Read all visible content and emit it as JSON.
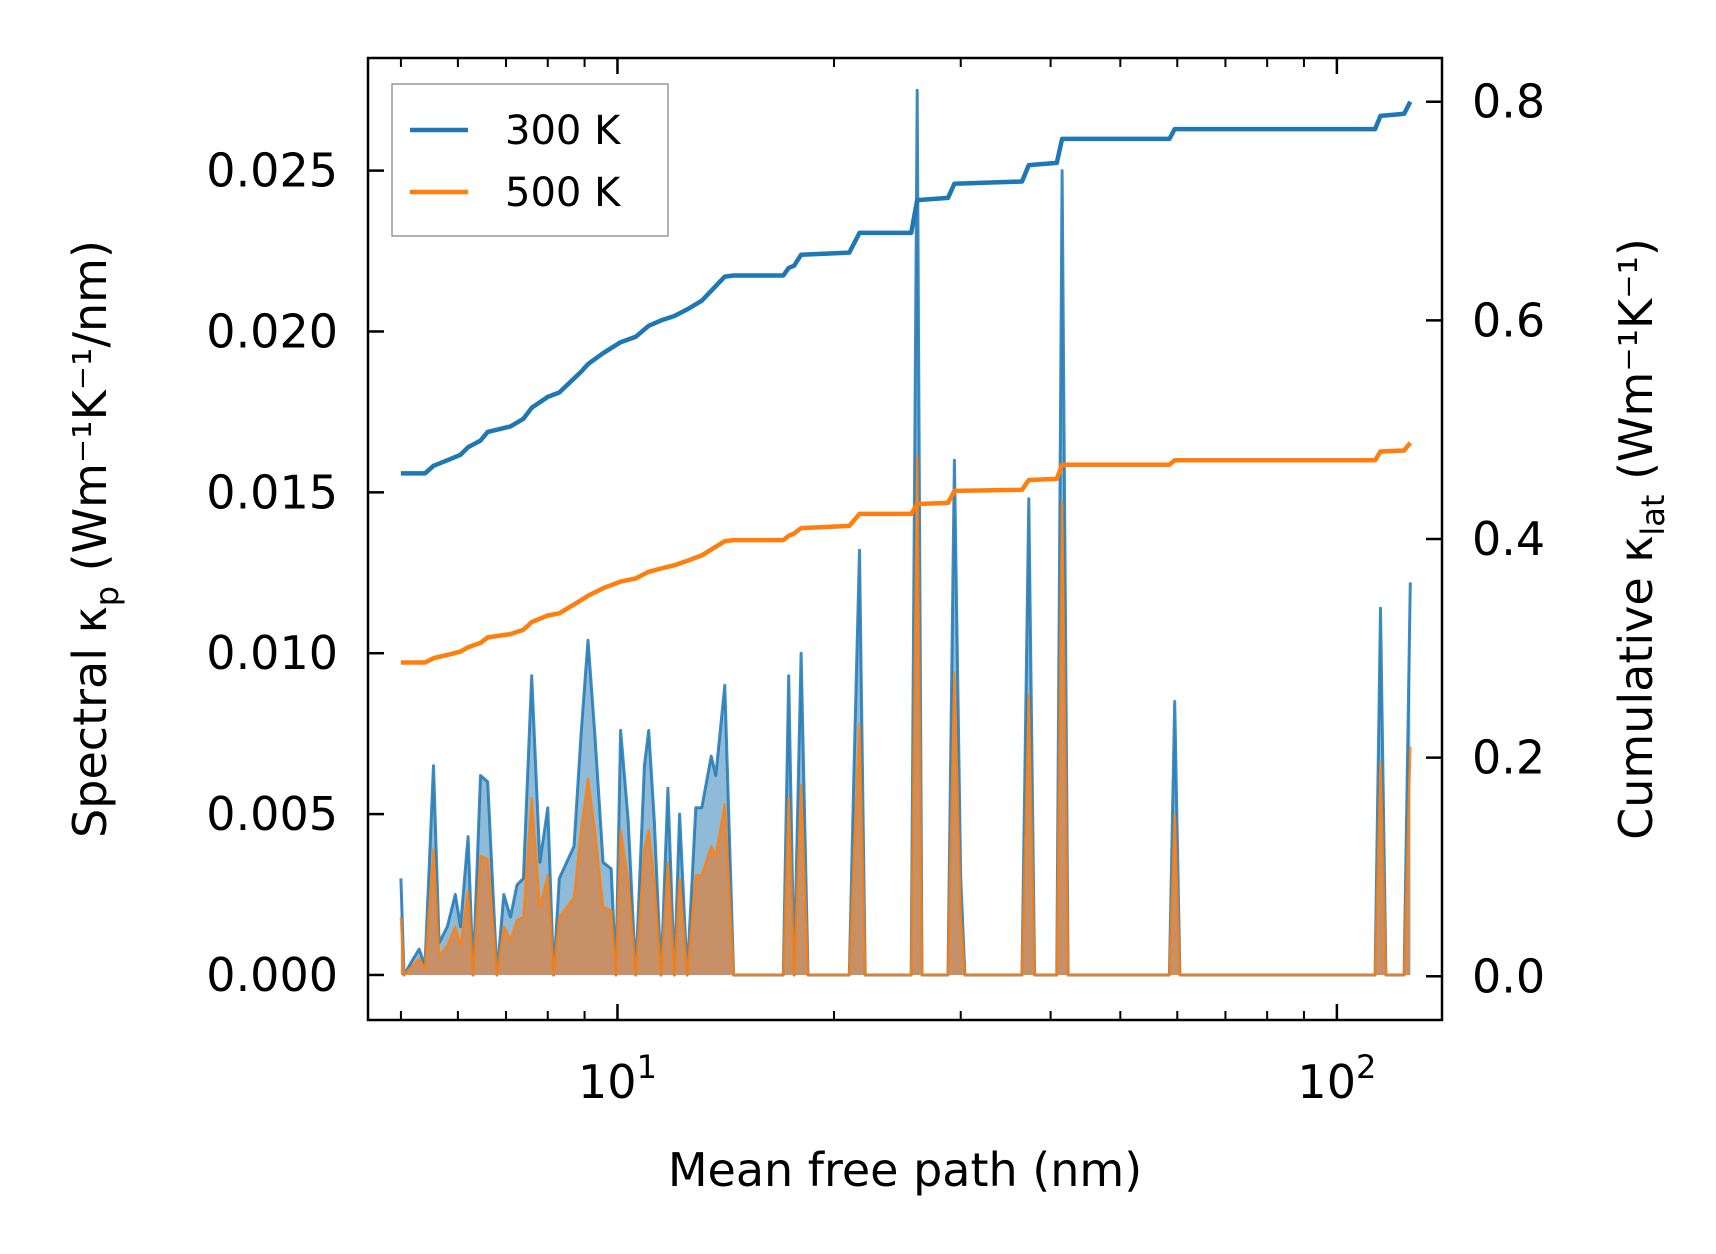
{
  "chart_data": {
    "type": "line",
    "xlabel": "Mean free path (nm)",
    "ylabel_left": {
      "pre": "Spectral κ",
      "sub": "p",
      "units": "(Wm⁻¹K⁻¹/nm)"
    },
    "ylabel_right": {
      "pre": "Cumulative κ",
      "sub": "lat",
      "units": "(Wm⁻¹K⁻¹)"
    },
    "xscale": "log",
    "xlim": [
      4.5,
      140
    ],
    "ylim_left": [
      -0.0014,
      0.0285
    ],
    "ylim_right": [
      -0.04,
      0.84
    ],
    "x_ticks": [
      {
        "value": 10,
        "base": "10",
        "exp": "1"
      },
      {
        "value": 100,
        "base": "10",
        "exp": "2"
      }
    ],
    "y_ticks_left": [
      "0.000",
      "0.005",
      "0.010",
      "0.015",
      "0.020",
      "0.025"
    ],
    "y_tick_values_left": [
      0,
      0.005,
      0.01,
      0.015,
      0.02,
      0.025
    ],
    "y_ticks_right": [
      "0.0",
      "0.2",
      "0.4",
      "0.6",
      "0.8"
    ],
    "y_tick_values_right": [
      0,
      0.2,
      0.4,
      0.6,
      0.8
    ],
    "legend": {
      "location": "top-left",
      "entries": [
        "300 K",
        "500 K"
      ]
    },
    "series": [
      {
        "name": "300 K",
        "color": "#1f77b4",
        "fill_color": "#1f77b4",
        "spectral": [
          [
            5.0,
            0.003
          ],
          [
            5.05,
            0.0
          ],
          [
            5.2,
            0.0005
          ],
          [
            5.3,
            0.0008
          ],
          [
            5.4,
            0.0003
          ],
          [
            5.55,
            0.0065
          ],
          [
            5.65,
            0.001
          ],
          [
            5.8,
            0.0015
          ],
          [
            5.95,
            0.0025
          ],
          [
            6.05,
            0.0015
          ],
          [
            6.2,
            0.0043
          ],
          [
            6.3,
            0.0
          ],
          [
            6.45,
            0.0062
          ],
          [
            6.6,
            0.006
          ],
          [
            6.8,
            0.0
          ],
          [
            6.95,
            0.0025
          ],
          [
            7.1,
            0.0018
          ],
          [
            7.25,
            0.0028
          ],
          [
            7.4,
            0.003
          ],
          [
            7.6,
            0.0093
          ],
          [
            7.8,
            0.0035
          ],
          [
            8.0,
            0.0052
          ],
          [
            8.15,
            0.0
          ],
          [
            8.3,
            0.003
          ],
          [
            8.5,
            0.0035
          ],
          [
            8.7,
            0.004
          ],
          [
            8.9,
            0.0075
          ],
          [
            9.1,
            0.0104
          ],
          [
            9.3,
            0.0075
          ],
          [
            9.55,
            0.0035
          ],
          [
            9.8,
            0.0033
          ],
          [
            9.95,
            0.0
          ],
          [
            10.1,
            0.0076
          ],
          [
            10.35,
            0.0048
          ],
          [
            10.6,
            0.0
          ],
          [
            10.9,
            0.0065
          ],
          [
            11.05,
            0.0076
          ],
          [
            11.25,
            0.0048
          ],
          [
            11.5,
            0.0
          ],
          [
            11.75,
            0.0058
          ],
          [
            12.0,
            0.0
          ],
          [
            12.2,
            0.005
          ],
          [
            12.5,
            0.0
          ],
          [
            12.85,
            0.0052
          ],
          [
            13.1,
            0.0052
          ],
          [
            13.5,
            0.0068
          ],
          [
            13.7,
            0.0062
          ],
          [
            14.1,
            0.009
          ],
          [
            14.5,
            0.0
          ],
          [
            17.0,
            0.0
          ],
          [
            17.3,
            0.0093
          ],
          [
            17.6,
            0.0
          ],
          [
            18.0,
            0.01
          ],
          [
            18.4,
            0.0
          ],
          [
            21.0,
            0.0
          ],
          [
            21.3,
            0.006
          ],
          [
            21.7,
            0.0132
          ],
          [
            22.1,
            0.0
          ],
          [
            25.6,
            0.0
          ],
          [
            26.1,
            0.0275
          ],
          [
            26.5,
            0.0
          ],
          [
            28.8,
            0.0
          ],
          [
            29.4,
            0.016
          ],
          [
            30.0,
            0.003
          ],
          [
            30.4,
            0.0
          ],
          [
            36.5,
            0.0
          ],
          [
            37.3,
            0.0148
          ],
          [
            38.0,
            0.0
          ],
          [
            40.8,
            0.0
          ],
          [
            41.5,
            0.025
          ],
          [
            42.3,
            0.0
          ],
          [
            58.5,
            0.0
          ],
          [
            59.5,
            0.0085
          ],
          [
            60.5,
            0.0
          ],
          [
            113,
            0.0
          ],
          [
            115,
            0.0114
          ],
          [
            117,
            0.0
          ],
          [
            124,
            0.0
          ],
          [
            126.5,
            0.0122
          ]
        ],
        "cumulative": [
          [
            5.0,
            0.46
          ],
          [
            5.4,
            0.46
          ],
          [
            5.55,
            0.467
          ],
          [
            5.8,
            0.472
          ],
          [
            6.05,
            0.477
          ],
          [
            6.2,
            0.484
          ],
          [
            6.45,
            0.49
          ],
          [
            6.6,
            0.498
          ],
          [
            7.1,
            0.503
          ],
          [
            7.4,
            0.51
          ],
          [
            7.6,
            0.52
          ],
          [
            8.0,
            0.53
          ],
          [
            8.3,
            0.534
          ],
          [
            8.9,
            0.553
          ],
          [
            9.1,
            0.56
          ],
          [
            9.55,
            0.57
          ],
          [
            10.1,
            0.58
          ],
          [
            10.6,
            0.585
          ],
          [
            11.05,
            0.595
          ],
          [
            11.5,
            0.6
          ],
          [
            12.0,
            0.604
          ],
          [
            12.5,
            0.61
          ],
          [
            13.1,
            0.618
          ],
          [
            14.1,
            0.64
          ],
          [
            14.5,
            0.641
          ],
          [
            17.0,
            0.641
          ],
          [
            17.3,
            0.648
          ],
          [
            17.6,
            0.65
          ],
          [
            18.0,
            0.66
          ],
          [
            21.0,
            0.662
          ],
          [
            21.7,
            0.68
          ],
          [
            25.6,
            0.68
          ],
          [
            26.1,
            0.71
          ],
          [
            28.8,
            0.712
          ],
          [
            29.4,
            0.725
          ],
          [
            36.5,
            0.727
          ],
          [
            37.3,
            0.742
          ],
          [
            40.8,
            0.744
          ],
          [
            41.5,
            0.766
          ],
          [
            58.5,
            0.766
          ],
          [
            59.5,
            0.775
          ],
          [
            113,
            0.775
          ],
          [
            115,
            0.787
          ],
          [
            124,
            0.789
          ],
          [
            126.5,
            0.8
          ]
        ]
      },
      {
        "name": "500 K",
        "color": "#ff7f0e",
        "fill_color": "#d08a55",
        "spectral": [
          [
            5.0,
            0.0018
          ],
          [
            5.05,
            0.0
          ],
          [
            5.2,
            0.0003
          ],
          [
            5.3,
            0.0005
          ],
          [
            5.4,
            0.0002
          ],
          [
            5.55,
            0.0039
          ],
          [
            5.65,
            0.0006
          ],
          [
            5.8,
            0.0009
          ],
          [
            5.95,
            0.0015
          ],
          [
            6.05,
            0.0009
          ],
          [
            6.2,
            0.0026
          ],
          [
            6.3,
            0.0
          ],
          [
            6.45,
            0.0037
          ],
          [
            6.6,
            0.0036
          ],
          [
            6.8,
            0.0
          ],
          [
            6.95,
            0.0015
          ],
          [
            7.1,
            0.0011
          ],
          [
            7.25,
            0.0017
          ],
          [
            7.4,
            0.0018
          ],
          [
            7.6,
            0.0055
          ],
          [
            7.8,
            0.0021
          ],
          [
            8.0,
            0.0031
          ],
          [
            8.15,
            0.0
          ],
          [
            8.3,
            0.0018
          ],
          [
            8.5,
            0.0021
          ],
          [
            8.7,
            0.0024
          ],
          [
            8.9,
            0.0045
          ],
          [
            9.1,
            0.0061
          ],
          [
            9.3,
            0.0045
          ],
          [
            9.55,
            0.0021
          ],
          [
            9.8,
            0.002
          ],
          [
            9.95,
            0.0
          ],
          [
            10.1,
            0.0045
          ],
          [
            10.35,
            0.0029
          ],
          [
            10.6,
            0.0
          ],
          [
            10.9,
            0.0039
          ],
          [
            11.05,
            0.0045
          ],
          [
            11.25,
            0.0029
          ],
          [
            11.5,
            0.0
          ],
          [
            11.75,
            0.0035
          ],
          [
            12.0,
            0.0
          ],
          [
            12.2,
            0.003
          ],
          [
            12.5,
            0.0
          ],
          [
            12.85,
            0.0031
          ],
          [
            13.1,
            0.0031
          ],
          [
            13.5,
            0.004
          ],
          [
            13.7,
            0.0037
          ],
          [
            14.1,
            0.0053
          ],
          [
            14.5,
            0.0
          ],
          [
            17.0,
            0.0
          ],
          [
            17.3,
            0.0055
          ],
          [
            17.6,
            0.0
          ],
          [
            18.0,
            0.0059
          ],
          [
            18.4,
            0.0
          ],
          [
            21.0,
            0.0
          ],
          [
            21.3,
            0.0036
          ],
          [
            21.7,
            0.0078
          ],
          [
            22.1,
            0.0
          ],
          [
            25.6,
            0.0
          ],
          [
            26.1,
            0.0161
          ],
          [
            26.5,
            0.0
          ],
          [
            28.8,
            0.0
          ],
          [
            29.4,
            0.0094
          ],
          [
            30.0,
            0.0018
          ],
          [
            30.4,
            0.0
          ],
          [
            36.5,
            0.0
          ],
          [
            37.3,
            0.0087
          ],
          [
            38.0,
            0.0
          ],
          [
            40.8,
            0.0
          ],
          [
            41.5,
            0.0147
          ],
          [
            42.3,
            0.0
          ],
          [
            58.5,
            0.0
          ],
          [
            59.5,
            0.005
          ],
          [
            60.5,
            0.0
          ],
          [
            113,
            0.0
          ],
          [
            115,
            0.0066
          ],
          [
            117,
            0.0
          ],
          [
            124,
            0.0
          ],
          [
            126.5,
            0.0071
          ]
        ],
        "cumulative": [
          [
            5.0,
            0.287
          ],
          [
            5.4,
            0.287
          ],
          [
            5.55,
            0.291
          ],
          [
            5.8,
            0.294
          ],
          [
            6.05,
            0.297
          ],
          [
            6.2,
            0.301
          ],
          [
            6.45,
            0.305
          ],
          [
            6.6,
            0.31
          ],
          [
            7.1,
            0.313
          ],
          [
            7.4,
            0.317
          ],
          [
            7.6,
            0.324
          ],
          [
            8.0,
            0.33
          ],
          [
            8.3,
            0.332
          ],
          [
            8.9,
            0.344
          ],
          [
            9.1,
            0.348
          ],
          [
            9.55,
            0.355
          ],
          [
            10.1,
            0.361
          ],
          [
            10.6,
            0.364
          ],
          [
            11.05,
            0.37
          ],
          [
            11.5,
            0.373
          ],
          [
            12.0,
            0.376
          ],
          [
            12.5,
            0.38
          ],
          [
            13.1,
            0.385
          ],
          [
            14.1,
            0.398
          ],
          [
            14.5,
            0.399
          ],
          [
            17.0,
            0.399
          ],
          [
            17.3,
            0.403
          ],
          [
            17.6,
            0.405
          ],
          [
            18.0,
            0.41
          ],
          [
            21.0,
            0.412
          ],
          [
            21.7,
            0.423
          ],
          [
            25.6,
            0.423
          ],
          [
            26.1,
            0.432
          ],
          [
            28.8,
            0.433
          ],
          [
            29.4,
            0.444
          ],
          [
            36.5,
            0.445
          ],
          [
            37.3,
            0.454
          ],
          [
            40.8,
            0.455
          ],
          [
            41.5,
            0.468
          ],
          [
            58.5,
            0.468
          ],
          [
            59.5,
            0.472
          ],
          [
            113,
            0.472
          ],
          [
            115,
            0.48
          ],
          [
            124,
            0.481
          ],
          [
            126.5,
            0.488
          ]
        ]
      }
    ]
  }
}
